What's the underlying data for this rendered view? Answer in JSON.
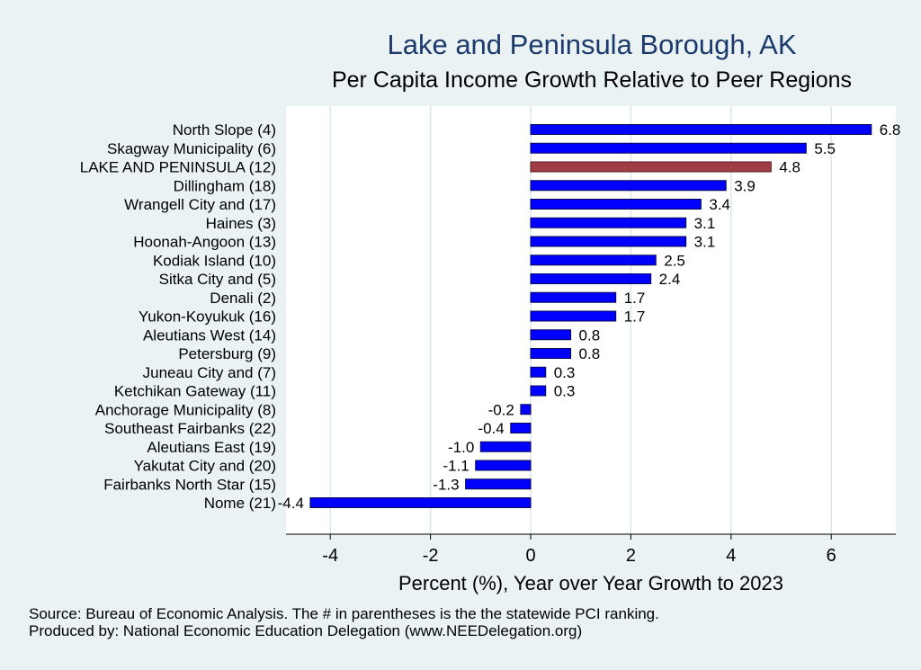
{
  "chart_data": {
    "type": "bar",
    "orientation": "horizontal",
    "title": "Lake and Peninsula Borough, AK",
    "subtitle": "Per Capita Income Growth Relative to Peer Regions",
    "xlabel": "Percent (%), Year over Year Growth to 2023",
    "xlim": [
      -4.8,
      7.3
    ],
    "xticks": [
      -4,
      -2,
      0,
      2,
      4,
      6
    ],
    "xtick_labels": [
      "-4",
      "-2",
      "0",
      "2",
      "4",
      "6"
    ],
    "grid": true,
    "highlight_color": "#9e3d44",
    "bar_color": "#0000ff",
    "categories": [
      "North Slope  (4)",
      "Skagway Municipality  (6)",
      "LAKE AND PENINSULA (12)",
      "Dillingham (18)",
      "Wrangell City and (17)",
      "Haines  (3)",
      "Hoonah-Angoon (13)",
      "Kodiak Island (10)",
      "Sitka City and  (5)",
      "Denali  (2)",
      "Yukon-Koyukuk (16)",
      "Aleutians West (14)",
      "Petersburg  (9)",
      "Juneau City and  (7)",
      "Ketchikan Gateway (11)",
      "Anchorage Municipality  (8)",
      "Southeast Fairbanks (22)",
      "Aleutians East (19)",
      "Yakutat City and (20)",
      "Fairbanks North Star (15)",
      "Nome (21)"
    ],
    "values": [
      6.8,
      5.5,
      4.8,
      3.9,
      3.4,
      3.1,
      3.1,
      2.5,
      2.4,
      1.7,
      1.7,
      0.8,
      0.8,
      0.3,
      0.3,
      -0.2,
      -0.4,
      -1.0,
      -1.1,
      -1.3,
      -4.4
    ],
    "value_labels": [
      "6.8",
      "5.5",
      "4.8",
      "3.9",
      "3.4",
      "3.1",
      "3.1",
      "2.5",
      "2.4",
      "1.7",
      "1.7",
      "0.8",
      "0.8",
      "0.3",
      "0.3",
      "-0.2",
      "-0.4",
      "-1.0",
      "-1.1",
      "-1.3",
      "-4.4"
    ],
    "highlight_index": 2
  },
  "notes": {
    "source": "Source: Bureau of Economic Analysis. The # in parentheses is the the statewide PCI ranking.",
    "produced_by": "Produced by: National Economic Education Delegation (www.NEEDelegation.org)"
  }
}
